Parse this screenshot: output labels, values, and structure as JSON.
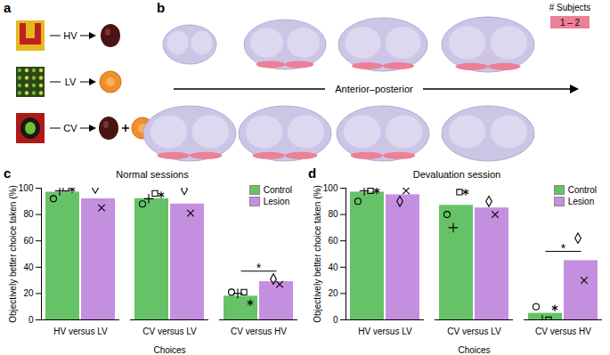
{
  "figure": {
    "panel_labels": [
      "a",
      "b",
      "c",
      "d"
    ]
  },
  "diagram": {
    "stimuli": [
      "HV",
      "LV",
      "CV"
    ],
    "subjects_key_title": "# Subjects",
    "subjects_key_label": "1 – 2",
    "axis_label": "Anterior–posterior"
  },
  "chart_data": [
    {
      "type": "bar",
      "title": "Normal sessions",
      "x_label": "Choices",
      "y_label": "Objectively better choice taken (%)",
      "categories": [
        "HV versus LV",
        "CV versus LV",
        "CV versus HV"
      ],
      "series": [
        {
          "name": "Control",
          "color": "#66c266",
          "values": [
            97,
            92,
            18
          ],
          "subjects": [
            {
              "marker": "circle",
              "values": [
                92,
                88,
                21
              ]
            },
            {
              "marker": "plus",
              "values": [
                98,
                92,
                20
              ]
            },
            {
              "marker": "square",
              "values": [
                100,
                96,
                21
              ]
            },
            {
              "marker": "asterisk",
              "values": [
                99,
                95,
                13
              ]
            }
          ]
        },
        {
          "name": "Lesion",
          "color": "#c58fe0",
          "values": [
            92,
            88,
            29
          ],
          "subjects": [
            {
              "marker": "diamond",
              "values": [
                100,
                99,
                31
              ]
            },
            {
              "marker": "times",
              "values": [
                85,
                81,
                27
              ]
            }
          ]
        }
      ],
      "ylim": [
        0,
        100
      ],
      "yticks": [
        0,
        20,
        40,
        60,
        80,
        100
      ],
      "legend": "top-right",
      "annotations": [
        {
          "category": "CV versus HV",
          "text": "*",
          "y": 37
        }
      ]
    },
    {
      "type": "bar",
      "title": "Devaluation session",
      "x_label": "Choices",
      "y_label": "Objectively better choice taken (%)",
      "categories": [
        "HV versus LV",
        "CV versus LV",
        "CV versus HV"
      ],
      "series": [
        {
          "name": "Control",
          "color": "#66c266",
          "values": [
            97,
            87,
            5
          ],
          "subjects": [
            {
              "marker": "circle",
              "values": [
                90,
                80,
                10
              ]
            },
            {
              "marker": "plus",
              "values": [
                98,
                70,
                0
              ]
            },
            {
              "marker": "square",
              "values": [
                98,
                97,
                0
              ]
            },
            {
              "marker": "asterisk",
              "values": [
                98,
                97,
                9
              ]
            }
          ]
        },
        {
          "name": "Lesion",
          "color": "#c58fe0",
          "values": [
            95,
            85,
            45
          ],
          "subjects": [
            {
              "marker": "diamond",
              "values": [
                90,
                90,
                62
              ]
            },
            {
              "marker": "times",
              "values": [
                98,
                80,
                30
              ]
            }
          ]
        }
      ],
      "ylim": [
        0,
        100
      ],
      "yticks": [
        0,
        20,
        40,
        60,
        80,
        100
      ],
      "legend": "top-right",
      "annotations": [
        {
          "category": "CV versus HV",
          "text": "*",
          "y": 52
        }
      ]
    }
  ]
}
